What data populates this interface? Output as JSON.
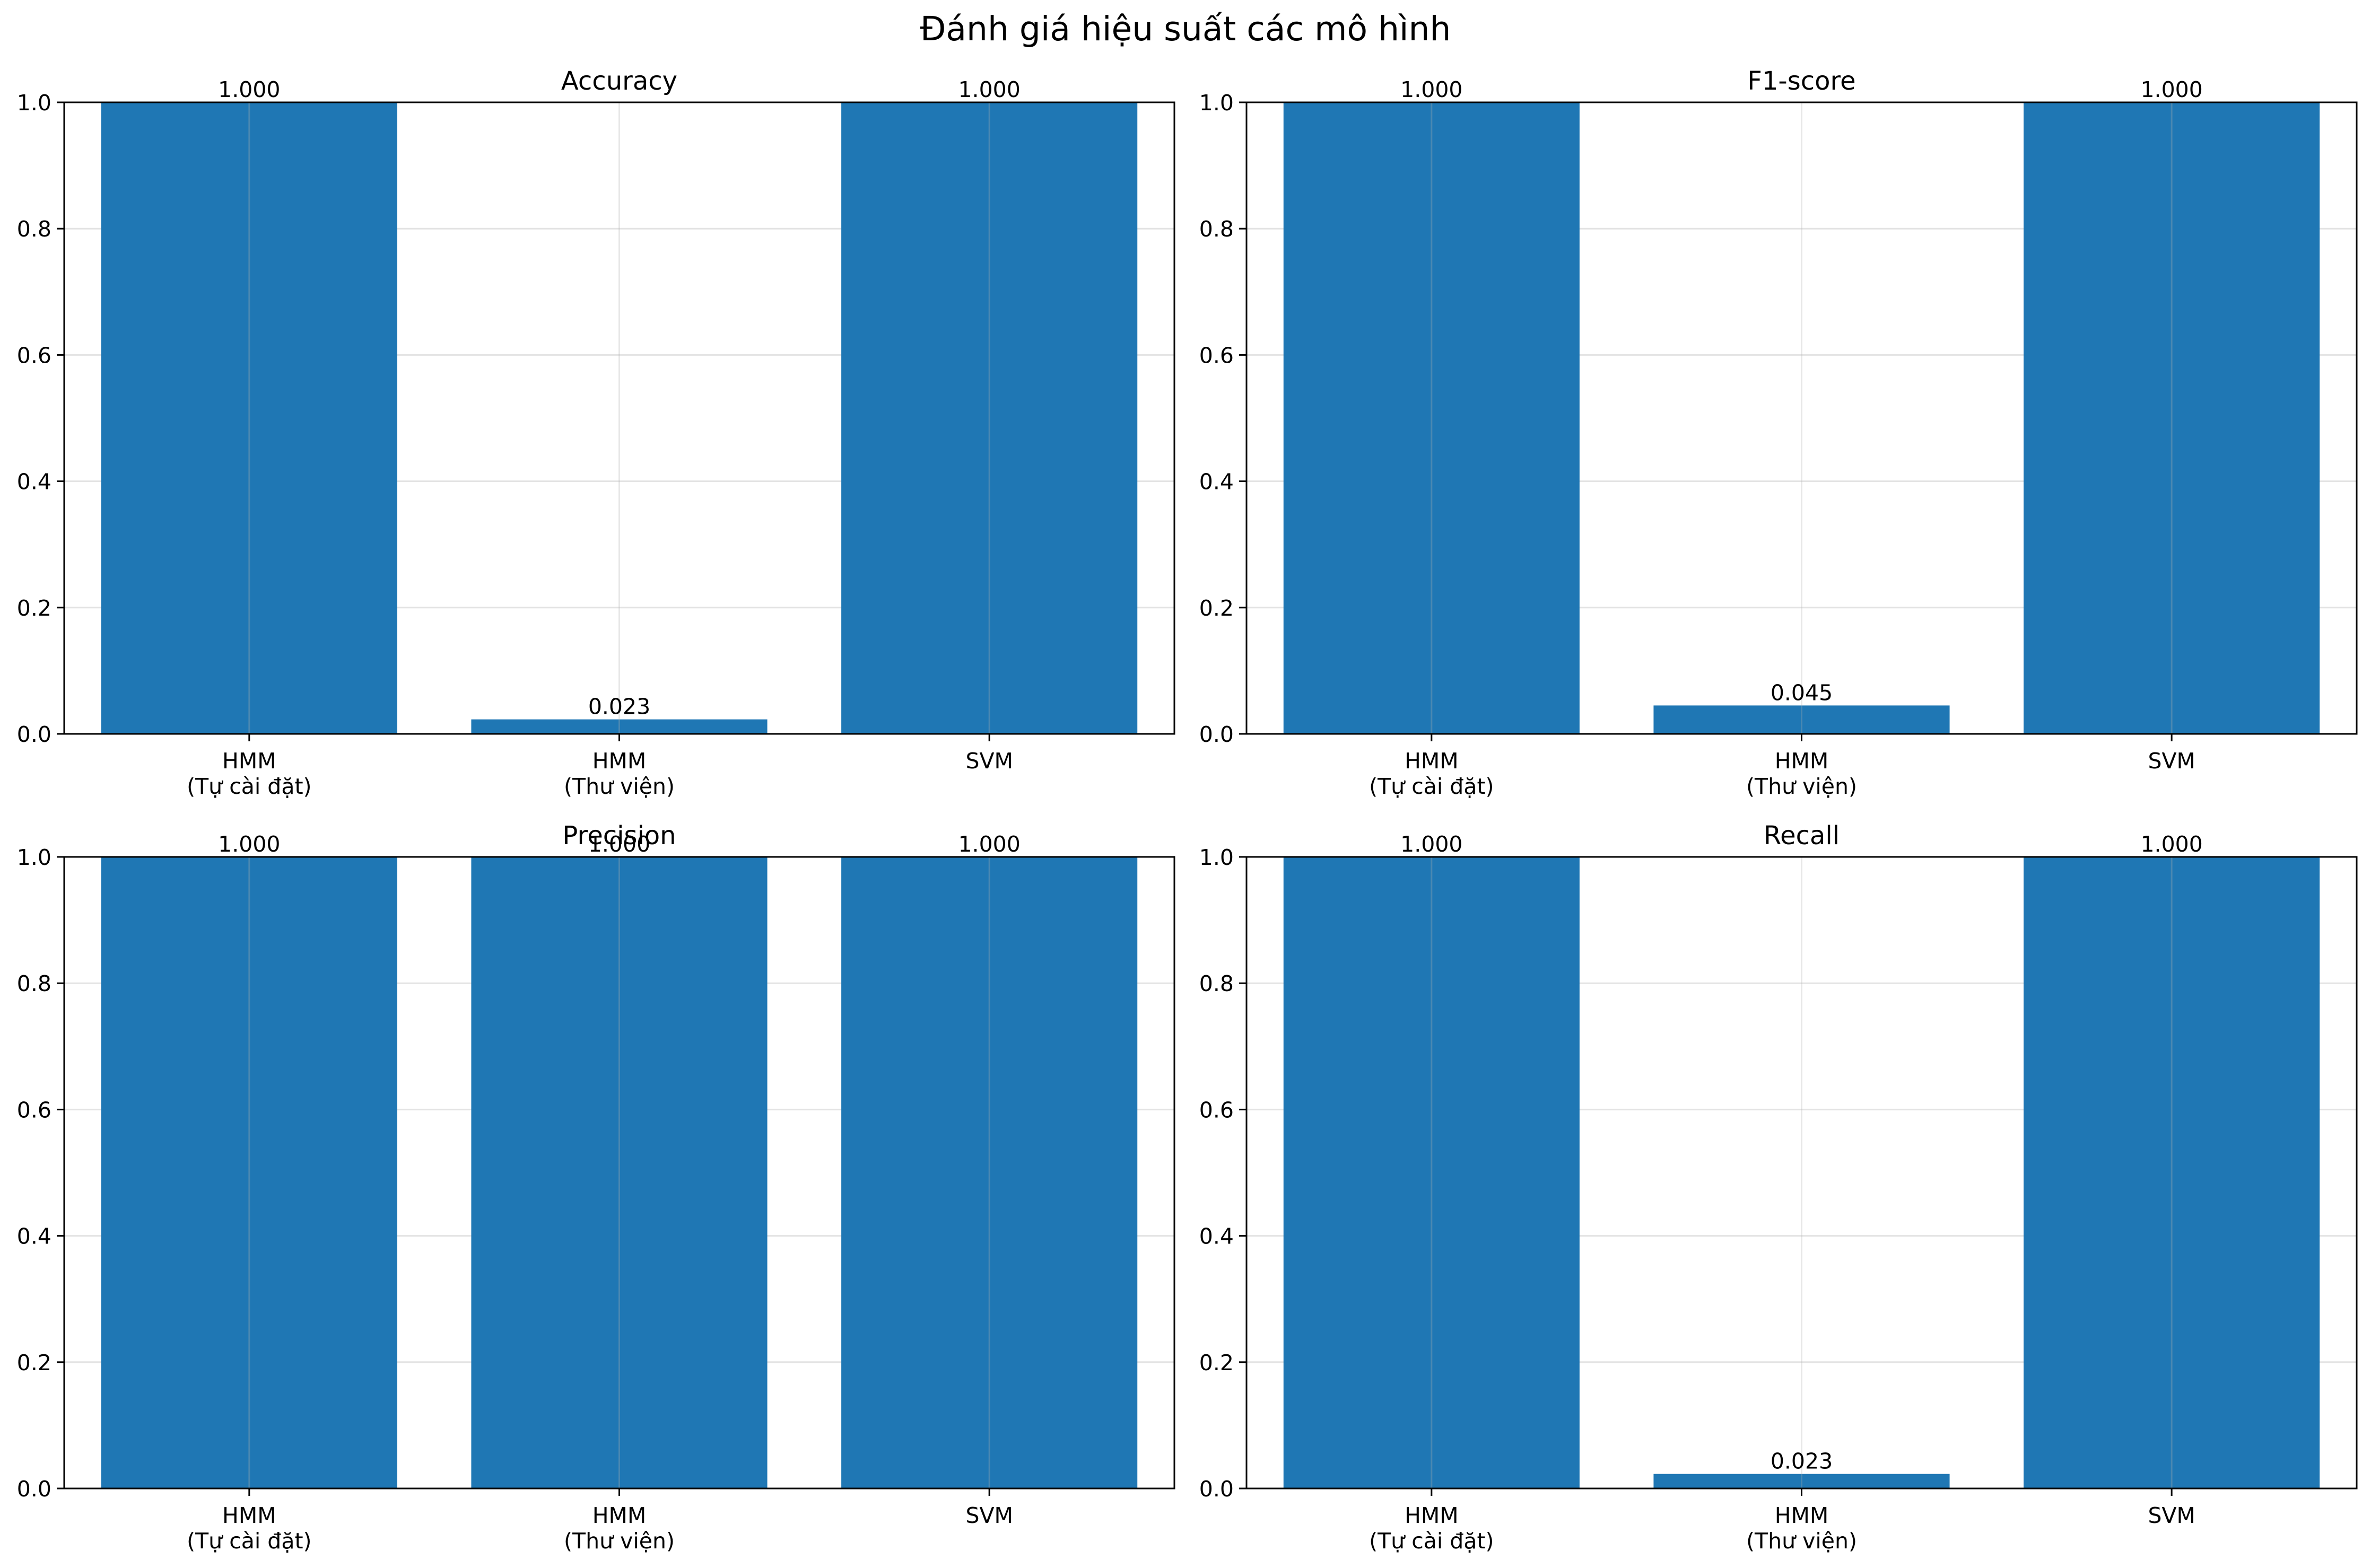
{
  "figure": {
    "suptitle": "Đánh giá hiệu suất các mô hình",
    "bar_color": "#1f77b4"
  },
  "chart_data": [
    {
      "type": "bar",
      "title": "Accuracy",
      "categories": [
        "HMM\n(Tự cài đặt)",
        "HMM\n(Thư viện)",
        "SVM"
      ],
      "values": [
        1.0,
        0.023,
        1.0
      ],
      "value_labels": [
        "1.000",
        "0.023",
        "1.000"
      ],
      "xlabel": "",
      "ylabel": "",
      "ylim": [
        0,
        1.0
      ],
      "yticks": [
        "0.0",
        "0.2",
        "0.4",
        "0.6",
        "0.8",
        "1.0"
      ],
      "grid": true
    },
    {
      "type": "bar",
      "title": "F1-score",
      "categories": [
        "HMM\n(Tự cài đặt)",
        "HMM\n(Thư viện)",
        "SVM"
      ],
      "values": [
        1.0,
        0.045,
        1.0
      ],
      "value_labels": [
        "1.000",
        "0.045",
        "1.000"
      ],
      "xlabel": "",
      "ylabel": "",
      "ylim": [
        0,
        1.0
      ],
      "yticks": [
        "0.0",
        "0.2",
        "0.4",
        "0.6",
        "0.8",
        "1.0"
      ],
      "grid": true
    },
    {
      "type": "bar",
      "title": "Precision",
      "categories": [
        "HMM\n(Tự cài đặt)",
        "HMM\n(Thư viện)",
        "SVM"
      ],
      "values": [
        1.0,
        1.0,
        1.0
      ],
      "value_labels": [
        "1.000",
        "1.000",
        "1.000"
      ],
      "xlabel": "",
      "ylabel": "",
      "ylim": [
        0,
        1.0
      ],
      "yticks": [
        "0.0",
        "0.2",
        "0.4",
        "0.6",
        "0.8",
        "1.0"
      ],
      "grid": true
    },
    {
      "type": "bar",
      "title": "Recall",
      "categories": [
        "HMM\n(Tự cài đặt)",
        "HMM\n(Thư viện)",
        "SVM"
      ],
      "values": [
        1.0,
        0.023,
        1.0
      ],
      "value_labels": [
        "1.000",
        "0.023",
        "1.000"
      ],
      "xlabel": "",
      "ylabel": "",
      "ylim": [
        0,
        1.0
      ],
      "yticks": [
        "0.0",
        "0.2",
        "0.4",
        "0.6",
        "0.8",
        "1.0"
      ],
      "grid": true
    }
  ]
}
